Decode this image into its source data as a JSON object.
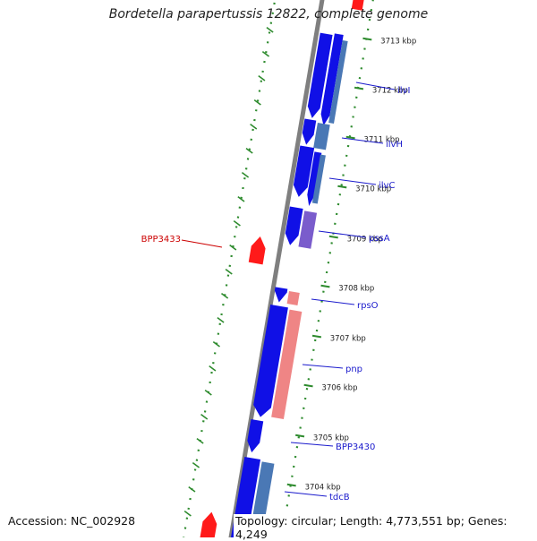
{
  "title": "Bordetella parapertussis 12822, complete genome",
  "footer": {
    "accession": "Accession: NC_002928",
    "summary": "Topology: circular; Length: 4,773,551 bp; Genes: 4,249"
  },
  "colors": {
    "backbone": "#7f7f7f",
    "tick": "#2e8b2e",
    "forward_gene": "#1010e6",
    "reverse_gene": "#ff1a1a",
    "cds_blue": "#4a78b5",
    "cds_purple": "#7a5ccc",
    "cds_pink": "#ef8585",
    "gene_label": "#1a1acc",
    "red_label": "#cc0000"
  },
  "scale_labels": [
    "3713 kbp",
    "3712 kbp",
    "3711 kbp",
    "3710 kbp",
    "3709 kbp",
    "3708 kbp",
    "3707 kbp",
    "3706 kbp",
    "3705 kbp",
    "3704 kbp"
  ],
  "gene_labels": [
    "ilvI",
    "ilvH",
    "ilvC",
    "pssA",
    "rpsO",
    "pnp",
    "BPP3430",
    "tdcB"
  ],
  "left_label": "BPP3433"
}
